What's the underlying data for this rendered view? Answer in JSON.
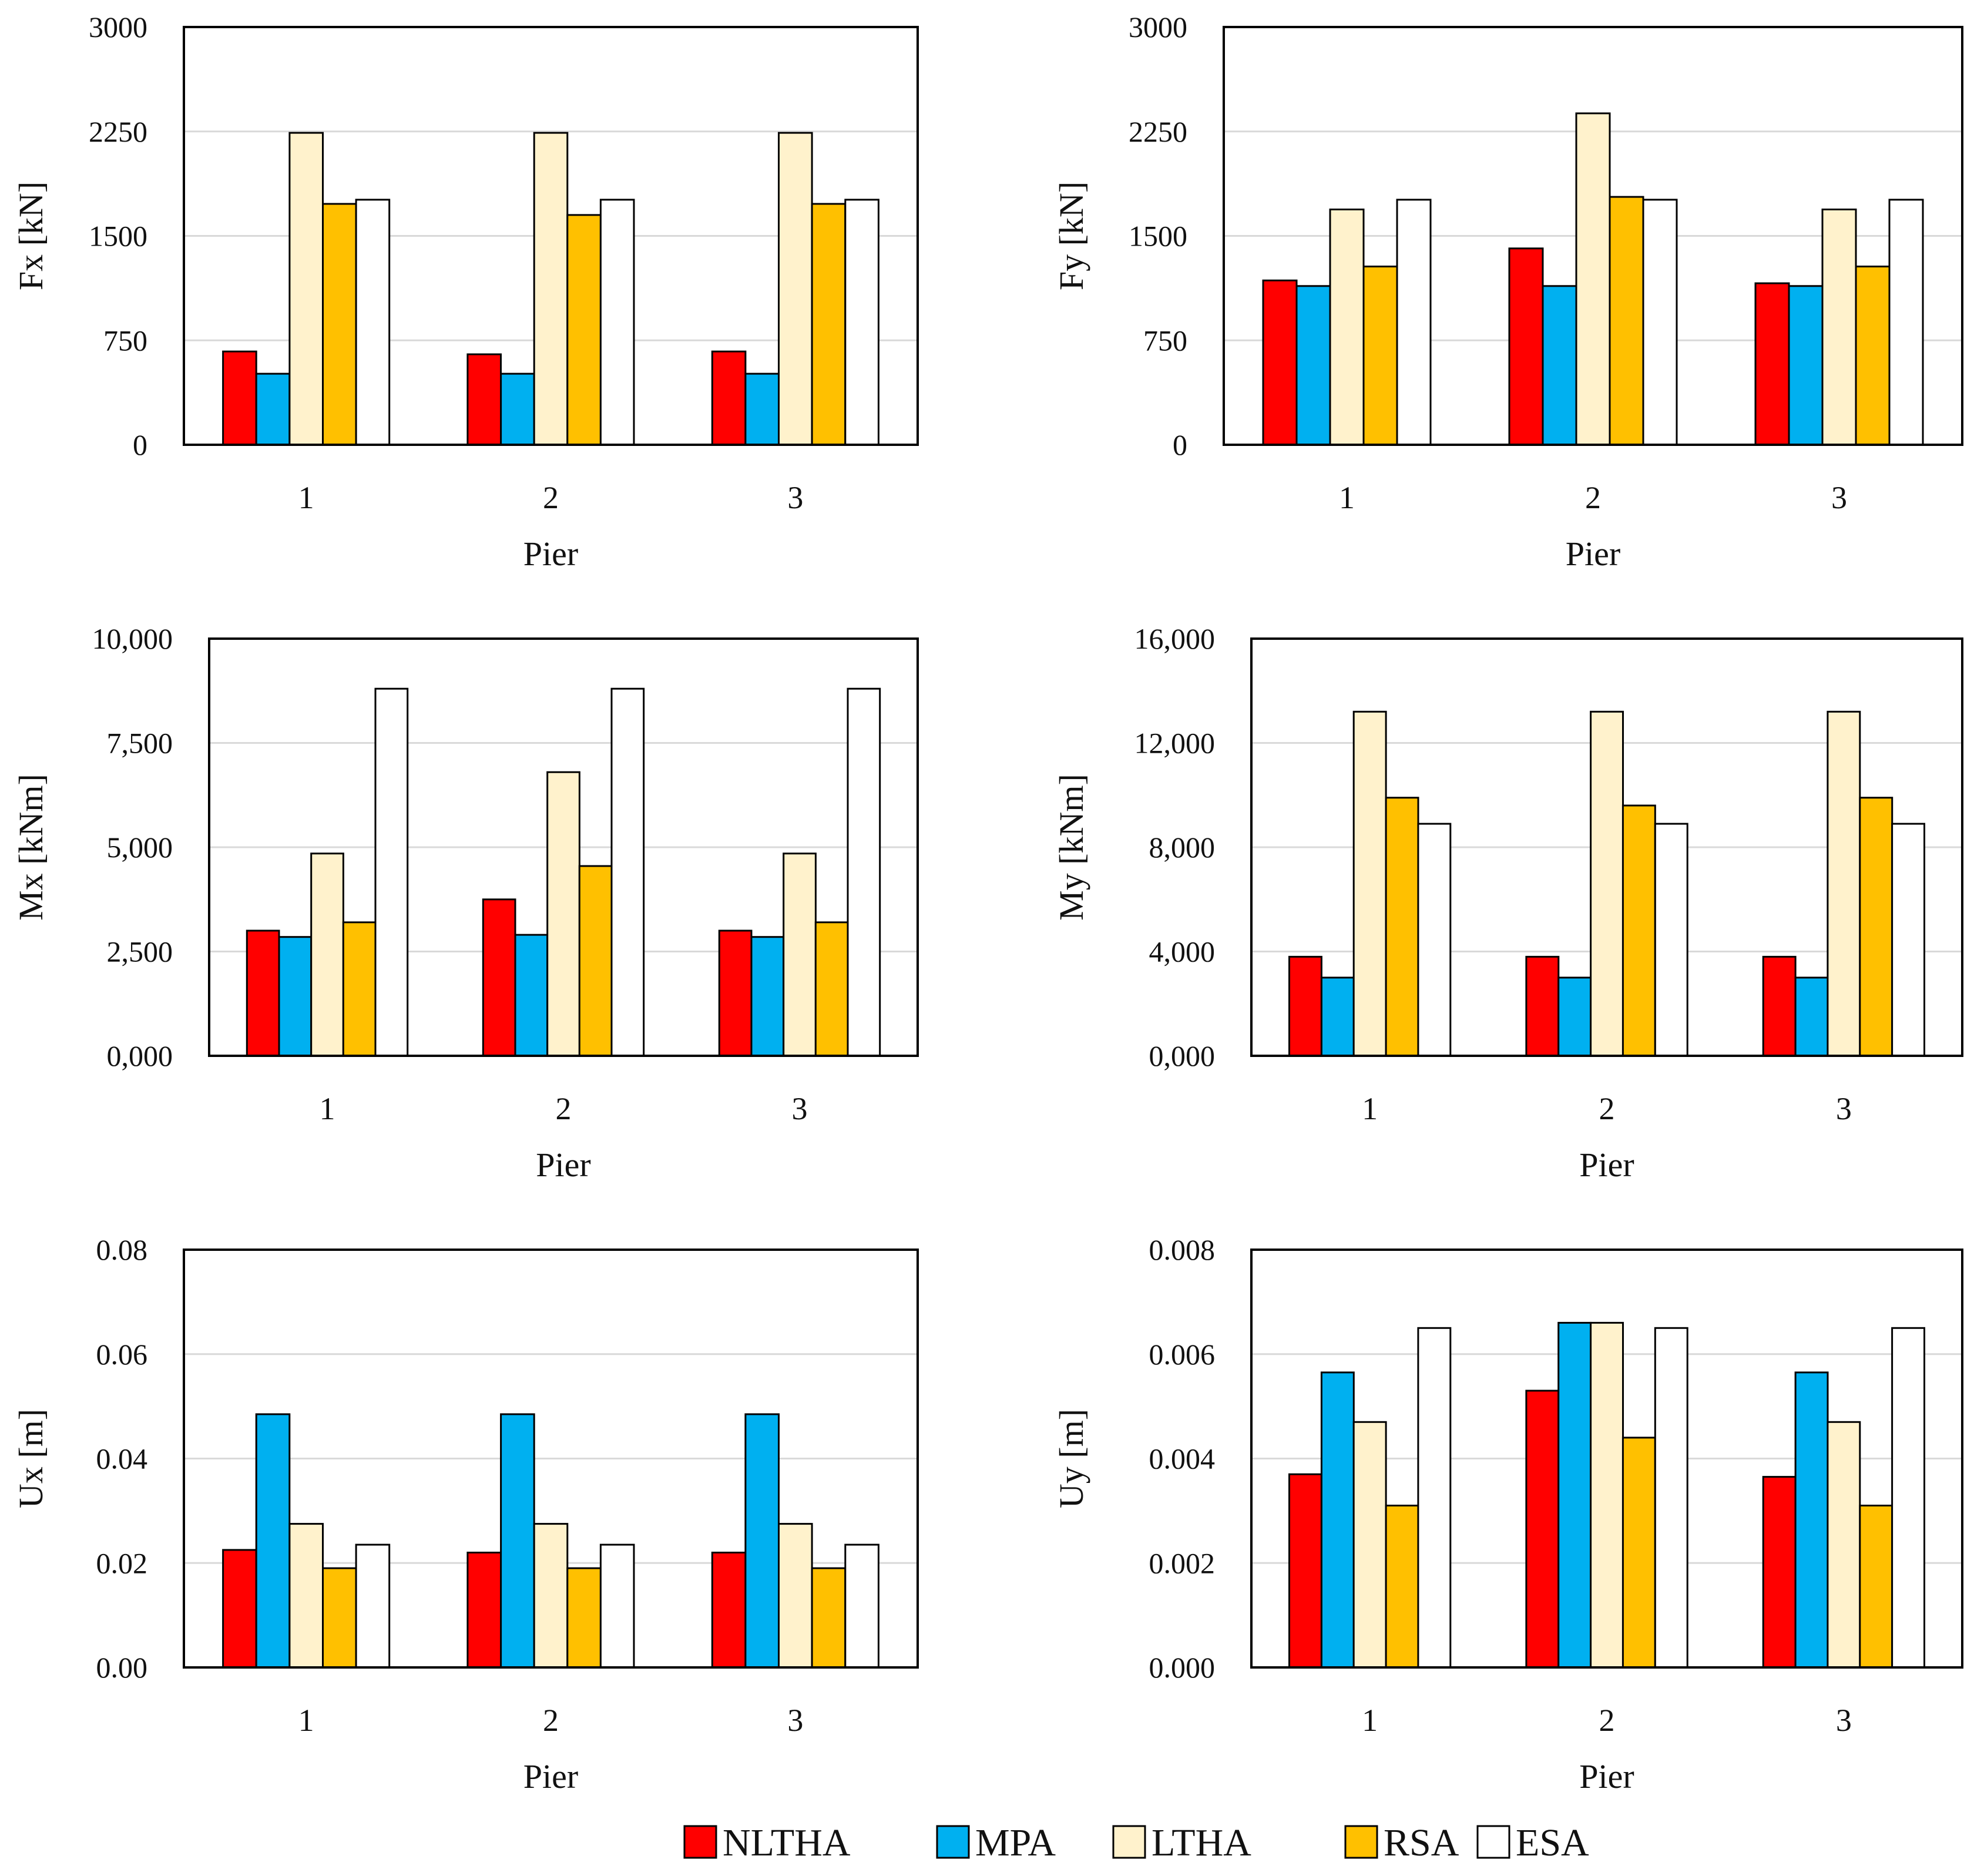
{
  "series_names": [
    "NLTHA",
    "MPA",
    "LTHA",
    "RSA",
    "ESA"
  ],
  "series_colors": [
    "#ff0000",
    "#00b0f0",
    "#fff2cc",
    "#ffc000",
    "#ffffff"
  ],
  "legend": [
    {
      "name": "NLTHA",
      "color": "#ff0000"
    },
    {
      "name": "MPA",
      "color": "#00b0f0"
    },
    {
      "name": "LTHA",
      "color": "#fff2cc"
    },
    {
      "name": "RSA",
      "color": "#ffc000"
    },
    {
      "name": "ESA",
      "color": "#ffffff"
    }
  ],
  "chart_data": [
    {
      "id": "fx",
      "type": "bar",
      "title": "",
      "xlabel": "Pier",
      "ylabel": "Fx [kN]",
      "categories": [
        "1",
        "2",
        "3"
      ],
      "ylim": [
        0,
        3000
      ],
      "yticks": [
        0,
        750,
        1500,
        2250,
        3000
      ],
      "ytick_labels": [
        "0",
        "750",
        "1500",
        "2250",
        "3000"
      ],
      "grid": true,
      "series": [
        {
          "name": "NLTHA",
          "values": [
            670,
            650,
            670
          ]
        },
        {
          "name": "MPA",
          "values": [
            510,
            510,
            510
          ]
        },
        {
          "name": "LTHA",
          "values": [
            2240,
            2240,
            2240
          ]
        },
        {
          "name": "RSA",
          "values": [
            1730,
            1650,
            1730
          ]
        },
        {
          "name": "ESA",
          "values": [
            1760,
            1760,
            1760
          ]
        }
      ]
    },
    {
      "id": "fy",
      "type": "bar",
      "title": "",
      "xlabel": "Pier",
      "ylabel": "Fy [kN]",
      "categories": [
        "1",
        "2",
        "3"
      ],
      "ylim": [
        0,
        3000
      ],
      "yticks": [
        0,
        750,
        1500,
        2250,
        3000
      ],
      "ytick_labels": [
        "0",
        "750",
        "1500",
        "2250",
        "3000"
      ],
      "grid": true,
      "series": [
        {
          "name": "NLTHA",
          "values": [
            1180,
            1410,
            1160
          ]
        },
        {
          "name": "MPA",
          "values": [
            1140,
            1140,
            1140
          ]
        },
        {
          "name": "LTHA",
          "values": [
            1690,
            2380,
            1690
          ]
        },
        {
          "name": "RSA",
          "values": [
            1280,
            1780,
            1280
          ]
        },
        {
          "name": "ESA",
          "values": [
            1760,
            1760,
            1760
          ]
        }
      ]
    },
    {
      "id": "mx",
      "type": "bar",
      "title": "",
      "xlabel": "Pier",
      "ylabel": "Mx [kNm]",
      "categories": [
        "1",
        "2",
        "3"
      ],
      "ylim": [
        0,
        10
      ],
      "yticks": [
        0,
        2.5,
        5,
        7.5,
        10
      ],
      "ytick_labels": [
        "0,000",
        "2,500",
        "5,000",
        "7,500",
        "10,000"
      ],
      "grid": true,
      "series": [
        {
          "name": "NLTHA",
          "values": [
            3.0,
            3.75,
            3.0
          ]
        },
        {
          "name": "MPA",
          "values": [
            2.85,
            2.9,
            2.85
          ]
        },
        {
          "name": "LTHA",
          "values": [
            4.85,
            6.8,
            4.85
          ]
        },
        {
          "name": "RSA",
          "values": [
            3.2,
            4.55,
            3.2
          ]
        },
        {
          "name": "ESA",
          "values": [
            8.8,
            8.8,
            8.8
          ]
        }
      ]
    },
    {
      "id": "my",
      "type": "bar",
      "title": "",
      "xlabel": "Pier",
      "ylabel": "My [kNm]",
      "categories": [
        "1",
        "2",
        "3"
      ],
      "ylim": [
        0,
        16
      ],
      "yticks": [
        0,
        4,
        8,
        12,
        16
      ],
      "ytick_labels": [
        "0,000",
        "4,000",
        "8,000",
        "12,000",
        "16,000"
      ],
      "grid": true,
      "series": [
        {
          "name": "NLTHA",
          "values": [
            3.8,
            3.8,
            3.8
          ]
        },
        {
          "name": "MPA",
          "values": [
            3.0,
            3.0,
            3.0
          ]
        },
        {
          "name": "LTHA",
          "values": [
            13.2,
            13.2,
            13.2
          ]
        },
        {
          "name": "RSA",
          "values": [
            9.9,
            9.6,
            9.9
          ]
        },
        {
          "name": "ESA",
          "values": [
            8.9,
            8.9,
            8.9
          ]
        }
      ]
    },
    {
      "id": "ux",
      "type": "bar",
      "title": "",
      "xlabel": "Pier",
      "ylabel": "Ux [m]",
      "categories": [
        "1",
        "2",
        "3"
      ],
      "ylim": [
        0,
        0.08
      ],
      "yticks": [
        0,
        0.02,
        0.04,
        0.06,
        0.08
      ],
      "ytick_labels": [
        "0.00",
        "0.02",
        "0.04",
        "0.06",
        "0.08"
      ],
      "grid": true,
      "series": [
        {
          "name": "NLTHA",
          "values": [
            0.0225,
            0.022,
            0.022
          ]
        },
        {
          "name": "MPA",
          "values": [
            0.0485,
            0.0485,
            0.0485
          ]
        },
        {
          "name": "LTHA",
          "values": [
            0.0275,
            0.0275,
            0.0275
          ]
        },
        {
          "name": "RSA",
          "values": [
            0.019,
            0.019,
            0.019
          ]
        },
        {
          "name": "ESA",
          "values": [
            0.0235,
            0.0235,
            0.0235
          ]
        }
      ]
    },
    {
      "id": "uy",
      "type": "bar",
      "title": "",
      "xlabel": "Pier",
      "ylabel": "Uy [m]",
      "categories": [
        "1",
        "2",
        "3"
      ],
      "ylim": [
        0,
        0.008
      ],
      "yticks": [
        0,
        0.002,
        0.004,
        0.006,
        0.008
      ],
      "ytick_labels": [
        "0.000",
        "0.002",
        "0.004",
        "0.006",
        "0.008"
      ],
      "grid": true,
      "series": [
        {
          "name": "NLTHA",
          "values": [
            0.0037,
            0.0053,
            0.00365
          ]
        },
        {
          "name": "MPA",
          "values": [
            0.00565,
            0.0066,
            0.00565
          ]
        },
        {
          "name": "LTHA",
          "values": [
            0.0047,
            0.0066,
            0.0047
          ]
        },
        {
          "name": "RSA",
          "values": [
            0.0031,
            0.0044,
            0.0031
          ]
        },
        {
          "name": "ESA",
          "values": [
            0.0065,
            0.0065,
            0.0065
          ]
        }
      ]
    }
  ]
}
